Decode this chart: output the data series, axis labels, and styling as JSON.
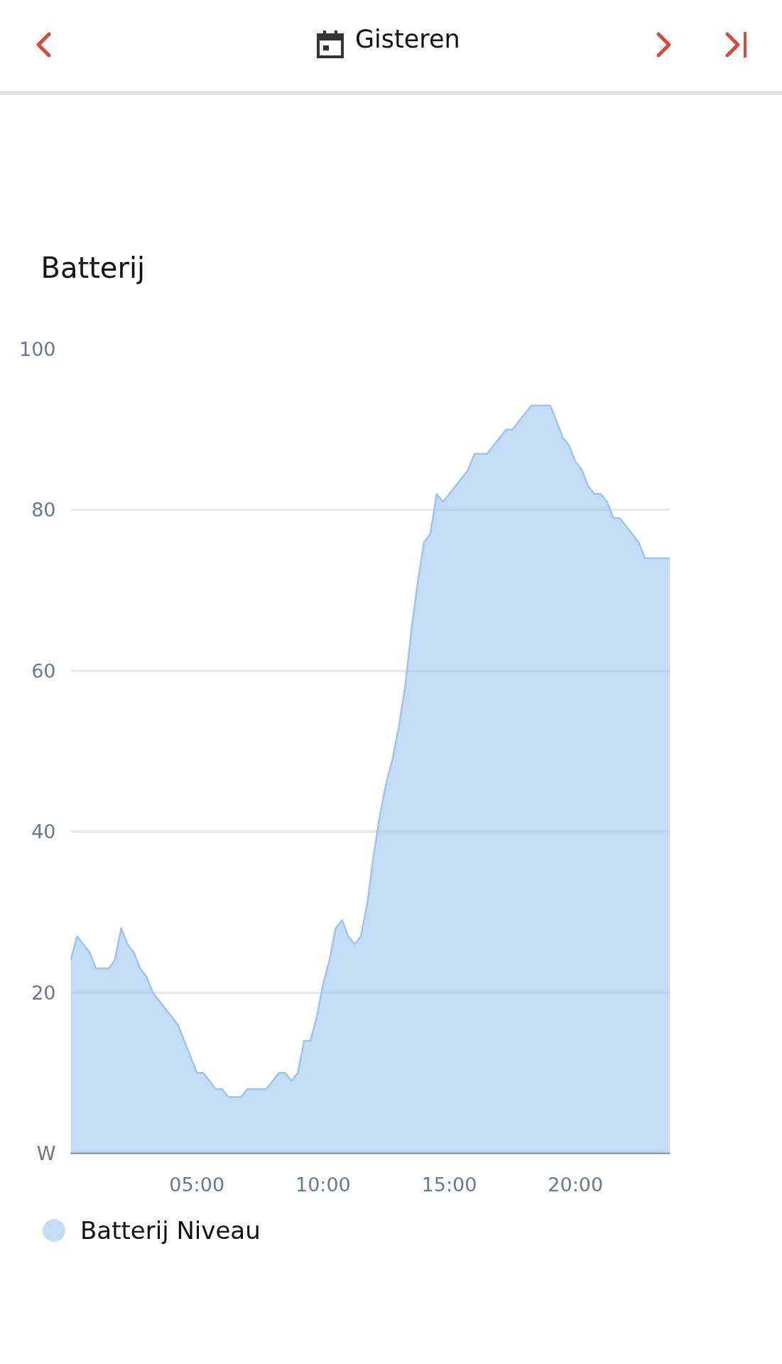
{
  "chart_data": {
    "type": "area",
    "title": "Batterij",
    "annotations": [
      "Gisteren"
    ],
    "x": [
      0,
      0.25,
      0.5,
      0.75,
      1,
      1.25,
      1.5,
      1.75,
      2,
      2.25,
      2.5,
      2.75,
      3,
      3.25,
      3.5,
      3.75,
      4,
      4.25,
      4.5,
      4.75,
      5,
      5.25,
      5.5,
      5.75,
      6,
      6.25,
      6.5,
      6.75,
      7,
      7.25,
      7.5,
      7.75,
      8,
      8.25,
      8.5,
      8.75,
      9,
      9.25,
      9.5,
      9.75,
      10,
      10.25,
      10.5,
      10.75,
      11,
      11.25,
      11.5,
      11.75,
      12,
      12.25,
      12.5,
      12.75,
      13,
      13.25,
      13.5,
      13.75,
      14,
      14.25,
      14.5,
      14.75,
      15,
      15.25,
      15.5,
      15.75,
      16,
      16.25,
      16.5,
      16.75,
      17,
      17.25,
      17.5,
      17.75,
      18,
      18.25,
      18.5,
      18.75,
      19,
      19.25,
      19.5,
      19.75,
      20,
      20.25,
      20.5,
      20.75,
      21,
      21.25,
      21.5,
      21.75,
      22,
      22.25,
      22.5,
      22.75,
      23,
      23.25,
      23.5,
      23.75
    ],
    "series": [
      {
        "name": "Batterij Niveau",
        "color": "#9ec4f0",
        "values": [
          24,
          27,
          26,
          25,
          23,
          23,
          23,
          24,
          28,
          26,
          25,
          23,
          22,
          20,
          19,
          18,
          17,
          16,
          14,
          12,
          10,
          10,
          9,
          8,
          8,
          7,
          7,
          7,
          8,
          8,
          8,
          8,
          9,
          10,
          10,
          9,
          10,
          14,
          14,
          17,
          21,
          24,
          28,
          29,
          27,
          26,
          27,
          31,
          37,
          42,
          46,
          49,
          53,
          58,
          65,
          71,
          76,
          77,
          82,
          81,
          82,
          83,
          84,
          85,
          87,
          87,
          87,
          88,
          89,
          90,
          90,
          91,
          92,
          93,
          93,
          93,
          93,
          91,
          89,
          88,
          86,
          85,
          83,
          82,
          82,
          81,
          79,
          79,
          78,
          77,
          76,
          74,
          74,
          74,
          74,
          74
        ]
      }
    ],
    "xlim": [
      0,
      23.75
    ],
    "xticks": [
      {
        "value": 5,
        "label": "05:00"
      },
      {
        "value": 10,
        "label": "10:00"
      },
      {
        "value": 15,
        "label": "15:00"
      },
      {
        "value": 20,
        "label": "20:00"
      }
    ],
    "ylim": [
      0,
      100
    ],
    "yticks": [
      {
        "value": 0,
        "label": "W"
      },
      20,
      40,
      60,
      80,
      100
    ],
    "grid": "y",
    "legend": "bottom left"
  }
}
